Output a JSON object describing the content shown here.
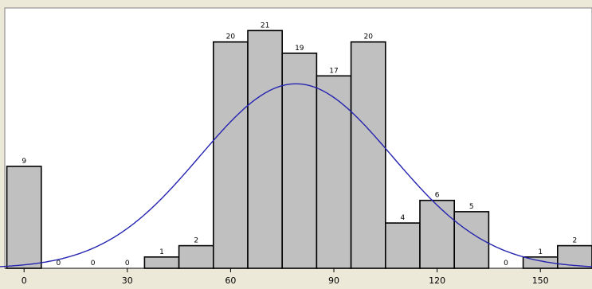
{
  "chart_data": {
    "type": "bar",
    "subtype": "histogram-with-normal-fit",
    "title": "",
    "xlabel": "",
    "ylabel": "",
    "bin_width": 10,
    "bins": [
      {
        "center": 0,
        "value": 9,
        "label": "9"
      },
      {
        "center": 10,
        "value": 0,
        "label": "0"
      },
      {
        "center": 20,
        "value": 0,
        "label": "0"
      },
      {
        "center": 30,
        "value": 0,
        "label": "0"
      },
      {
        "center": 40,
        "value": 1,
        "label": "1"
      },
      {
        "center": 50,
        "value": 2,
        "label": "2"
      },
      {
        "center": 60,
        "value": 20,
        "label": "20"
      },
      {
        "center": 70,
        "value": 21,
        "label": "21"
      },
      {
        "center": 80,
        "value": 19,
        "label": "19"
      },
      {
        "center": 90,
        "value": 17,
        "label": "17"
      },
      {
        "center": 100,
        "value": 20,
        "label": "20"
      },
      {
        "center": 110,
        "value": 4,
        "label": "4"
      },
      {
        "center": 120,
        "value": 6,
        "label": "6"
      },
      {
        "center": 130,
        "value": 5,
        "label": "5"
      },
      {
        "center": 140,
        "value": 0,
        "label": "0"
      },
      {
        "center": 150,
        "value": 1,
        "label": "1"
      },
      {
        "center": 160,
        "value": 2,
        "label": "2"
      }
    ],
    "xticks": [
      0,
      30,
      60,
      90,
      120,
      150
    ],
    "xtick_labels": [
      "0",
      "30",
      "60",
      "90",
      "120",
      "150"
    ],
    "xlim": [
      -7,
      165
    ],
    "ylim": [
      0,
      23
    ],
    "fit": {
      "type": "normal",
      "mean": 79,
      "sd": 28,
      "peak": 16.3
    },
    "grid": false,
    "colors": {
      "bar_fill": "#c0c0c0",
      "bar_edge": "#000000",
      "curve": "#2424b0",
      "plot_bg": "#ffffff",
      "frame_bg": "#ece9d8"
    }
  }
}
